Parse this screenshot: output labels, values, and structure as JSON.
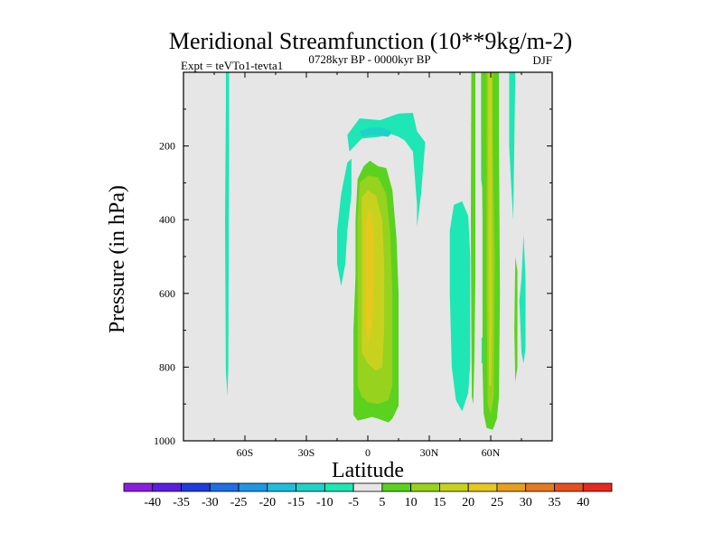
{
  "chart_data": {
    "type": "contour",
    "title": "Meridional Streamfunction (10**9kg/m-2)",
    "left_annotation": "Expt = teVTo1-tevta1",
    "center_annotation": "0728kyr BP - 0000kyr BP",
    "right_annotation": "DJF",
    "xlabel": "Latitude",
    "ylabel": "Pressure (in hPa)",
    "xlim": [
      -90,
      90
    ],
    "ylim": [
      1000,
      0
    ],
    "x_ticks": [
      {
        "value": -60,
        "label": "60S"
      },
      {
        "value": -30,
        "label": "30S"
      },
      {
        "value": 0,
        "label": "0"
      },
      {
        "value": 30,
        "label": "30N"
      },
      {
        "value": 60,
        "label": "60N"
      }
    ],
    "y_ticks": [
      {
        "value": 200,
        "label": "200"
      },
      {
        "value": 400,
        "label": "400"
      },
      {
        "value": 600,
        "label": "600"
      },
      {
        "value": 800,
        "label": "800"
      },
      {
        "value": 1000,
        "label": "1000"
      }
    ],
    "background_color": "#e6e6e6",
    "colorbar": {
      "levels": [
        -40,
        -35,
        -30,
        -25,
        -20,
        -15,
        -10,
        -5,
        5,
        10,
        15,
        20,
        25,
        30,
        35,
        40
      ],
      "labels": [
        "-40",
        "-35",
        "-30",
        "-25",
        "-20",
        "-15",
        "-10",
        "-5",
        "5",
        "10",
        "15",
        "20",
        "25",
        "30",
        "35",
        "40"
      ],
      "colors": [
        "#8a1ee0",
        "#5a1ee0",
        "#1e3cdc",
        "#1e6ee6",
        "#1e96e6",
        "#1ebedc",
        "#1ed2c8",
        "#1ee6b4",
        "#e6e6e6",
        "#5ad21e",
        "#96d21e",
        "#c8d21e",
        "#e6c81e",
        "#e6a01e",
        "#e6781e",
        "#e6501e",
        "#e6281e"
      ]
    },
    "regions": [
      {
        "level": "-5",
        "color": "#1ee6b4",
        "polygon": [
          [
            -69.3,
            0
          ],
          [
            -67.7,
            0
          ],
          [
            -67.7,
            220
          ],
          [
            -68.1,
            800
          ],
          [
            -68.5,
            880
          ],
          [
            -69.3,
            810
          ],
          [
            -69.7,
            400
          ],
          [
            -69.3,
            100
          ]
        ]
      },
      {
        "level": "-5",
        "color": "#1ee6b4",
        "polygon": [
          [
            -10,
            170
          ],
          [
            -4,
            125
          ],
          [
            6,
            130
          ],
          [
            15,
            112
          ],
          [
            22,
            110
          ],
          [
            24,
            160
          ],
          [
            28,
            190
          ],
          [
            26,
            330
          ],
          [
            24,
            420
          ],
          [
            24,
            360
          ],
          [
            22,
            215
          ],
          [
            18,
            185
          ],
          [
            15,
            175
          ],
          [
            10,
            165
          ],
          [
            6,
            175
          ],
          [
            -3,
            180
          ],
          [
            -9,
            215
          ]
        ]
      },
      {
        "level": "-10",
        "color": "#1ed2c8",
        "polygon": [
          [
            -4,
            160
          ],
          [
            1,
            150
          ],
          [
            7,
            150
          ],
          [
            12,
            162
          ],
          [
            10,
            175
          ],
          [
            2,
            170
          ],
          [
            -3,
            175
          ]
        ]
      },
      {
        "level": "-5",
        "color": "#1ee6b4",
        "polygon": [
          [
            -15,
            430
          ],
          [
            -13,
            330
          ],
          [
            -10,
            245
          ],
          [
            -8,
            235
          ],
          [
            -8,
            330
          ],
          [
            -10,
            430
          ],
          [
            -11,
            520
          ],
          [
            -13,
            580
          ],
          [
            -15,
            520
          ]
        ]
      },
      {
        "level": "-5",
        "color": "#1ee6b4",
        "polygon": [
          [
            40,
            430
          ],
          [
            42,
            360
          ],
          [
            46,
            350
          ],
          [
            49,
            390
          ],
          [
            50,
            500
          ],
          [
            50,
            790
          ],
          [
            49,
            870
          ],
          [
            46,
            920
          ],
          [
            43,
            890
          ],
          [
            41,
            800
          ],
          [
            40,
            600
          ]
        ]
      },
      {
        "level": "-5",
        "color": "#1ee6b4",
        "polygon": [
          [
            55.3,
            0
          ],
          [
            56.7,
            0
          ],
          [
            56.7,
            300
          ],
          [
            56,
            320
          ],
          [
            55.3,
            290
          ]
        ]
      },
      {
        "level": "-5",
        "color": "#1ee6b4",
        "polygon": [
          [
            55.5,
            720
          ],
          [
            56.5,
            720
          ],
          [
            56.5,
            790
          ],
          [
            55.5,
            790
          ]
        ]
      },
      {
        "level": "-5",
        "color": "#1ee6b4",
        "polygon": [
          [
            69,
            0
          ],
          [
            72,
            0
          ],
          [
            71,
            400
          ],
          [
            70,
            310
          ],
          [
            69,
            200
          ]
        ]
      },
      {
        "level": "-5",
        "color": "#1ee6b4",
        "polygon": [
          [
            74,
            620
          ],
          [
            75,
            560
          ],
          [
            76,
            440
          ],
          [
            77,
            560
          ],
          [
            77,
            750
          ],
          [
            76,
            790
          ],
          [
            75,
            760
          ]
        ]
      },
      {
        "level": "5",
        "color": "#5ad21e",
        "polygon": [
          [
            -5,
            290
          ],
          [
            -2,
            255
          ],
          [
            1,
            240
          ],
          [
            5,
            255
          ],
          [
            9,
            260
          ],
          [
            12,
            320
          ],
          [
            14,
            450
          ],
          [
            15,
            600
          ],
          [
            15,
            820
          ],
          [
            15,
            905
          ],
          [
            12,
            940
          ],
          [
            10,
            950
          ],
          [
            5,
            940
          ],
          [
            2,
            935
          ],
          [
            -1,
            940
          ],
          [
            -5,
            945
          ],
          [
            -7,
            930
          ],
          [
            -7,
            850
          ],
          [
            -7,
            700
          ],
          [
            -6,
            550
          ],
          [
            -6,
            400
          ]
        ]
      },
      {
        "level": "10",
        "color": "#96d21e",
        "polygon": [
          [
            -4,
            300
          ],
          [
            0,
            280
          ],
          [
            5,
            285
          ],
          [
            9,
            330
          ],
          [
            11,
            440
          ],
          [
            12,
            600
          ],
          [
            12,
            850
          ],
          [
            10,
            890
          ],
          [
            5,
            900
          ],
          [
            0,
            895
          ],
          [
            -3,
            880
          ],
          [
            -5,
            850
          ],
          [
            -5,
            650
          ],
          [
            -5,
            400
          ]
        ]
      },
      {
        "level": "15",
        "color": "#c8d21e",
        "polygon": [
          [
            -3,
            340
          ],
          [
            0,
            320
          ],
          [
            4,
            335
          ],
          [
            7,
            400
          ],
          [
            8,
            520
          ],
          [
            8,
            700
          ],
          [
            7,
            800
          ],
          [
            4,
            810
          ],
          [
            0,
            790
          ],
          [
            -3,
            760
          ],
          [
            -3,
            600
          ],
          [
            -3,
            420
          ]
        ]
      },
      {
        "level": "20",
        "color": "#e6c81e",
        "polygon": [
          [
            -1,
            410
          ],
          [
            1,
            370
          ],
          [
            3,
            440
          ],
          [
            3,
            560
          ],
          [
            2,
            690
          ],
          [
            0,
            740
          ],
          [
            -1,
            690
          ],
          [
            -1,
            550
          ]
        ]
      },
      {
        "level": "5",
        "color": "#5ad21e",
        "polygon": [
          [
            55.5,
            0
          ],
          [
            64,
            0
          ],
          [
            64,
            180
          ],
          [
            64.5,
            600
          ],
          [
            64,
            880
          ],
          [
            63,
            940
          ],
          [
            61,
            970
          ],
          [
            58,
            965
          ],
          [
            56.5,
            925
          ],
          [
            56,
            800
          ],
          [
            56,
            400
          ],
          [
            55.5,
            150
          ]
        ]
      },
      {
        "level": "10",
        "color": "#96d21e",
        "polygon": [
          [
            58,
            0
          ],
          [
            61,
            0
          ],
          [
            61,
            200
          ],
          [
            62,
            500
          ],
          [
            61.5,
            880
          ],
          [
            60,
            930
          ],
          [
            58.5,
            900
          ],
          [
            58,
            600
          ],
          [
            58,
            300
          ]
        ]
      },
      {
        "level": "15",
        "color": "#c8d21e",
        "polygon": [
          [
            58.8,
            0
          ],
          [
            60.5,
            0
          ],
          [
            60.6,
            300
          ],
          [
            60.8,
            700
          ],
          [
            60.2,
            850
          ],
          [
            59.2,
            850
          ],
          [
            58.9,
            600
          ],
          [
            58.8,
            300
          ]
        ]
      },
      {
        "level": "5",
        "color": "#5ad21e",
        "polygon": [
          [
            50.5,
            0
          ],
          [
            52.5,
            0
          ],
          [
            52.5,
            550
          ],
          [
            52,
            780
          ],
          [
            51.5,
            900
          ],
          [
            50.8,
            880
          ],
          [
            50.5,
            700
          ],
          [
            50.3,
            400
          ]
        ]
      },
      {
        "level": "5",
        "color": "#5ad21e",
        "polygon": [
          [
            72,
            500
          ],
          [
            73,
            540
          ],
          [
            73,
            800
          ],
          [
            72,
            840
          ],
          [
            71.5,
            700
          ]
        ]
      }
    ]
  }
}
